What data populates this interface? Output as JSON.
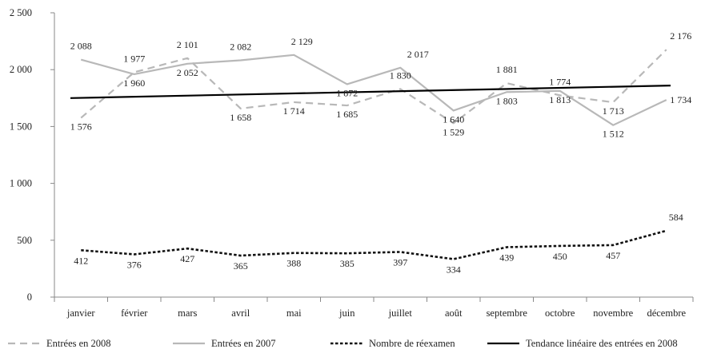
{
  "chart_data": {
    "type": "line",
    "title": "",
    "xlabel": "",
    "ylabel": "",
    "ylim": [
      0,
      2500
    ],
    "yticks": [
      0,
      500,
      1000,
      1500,
      2000,
      2500
    ],
    "ytick_labels": [
      "0",
      "500",
      "1 000",
      "1 500",
      "2 000",
      "2 500"
    ],
    "categories": [
      "janvier",
      "février",
      "mars",
      "avril",
      "mai",
      "juin",
      "juillet",
      "août",
      "septembre",
      "octobre",
      "novembre",
      "décembre"
    ],
    "grid": false,
    "legend_position": "bottom",
    "series": [
      {
        "name": "Entrées en 2008",
        "style": "dashed",
        "color": "#b8b8b8",
        "values": [
          1576,
          1977,
          2101,
          1658,
          1714,
          1685,
          1830,
          1529,
          1881,
          1774,
          1713,
          2176
        ],
        "labels": [
          "1 576",
          "1 977",
          "2 101",
          "1 658",
          "1 714",
          "1 685",
          "1 830",
          "1 529",
          "1 881",
          "1 774",
          "1 713",
          "2 176"
        ]
      },
      {
        "name": "Entrées en 2007",
        "style": "solid",
        "color": "#b8b8b8",
        "values": [
          2088,
          1960,
          2052,
          2082,
          2129,
          1872,
          2017,
          1640,
          1803,
          1813,
          1512,
          1734
        ],
        "labels": [
          "2 088",
          "1 960",
          "2 052",
          "2 082",
          "2 129",
          "1 872",
          "2 017",
          "1 640",
          "1 803",
          "1 813",
          "1 512",
          "1 734"
        ]
      },
      {
        "name": "Nombre de réexamen",
        "style": "dotted",
        "color": "#111111",
        "values": [
          412,
          376,
          427,
          365,
          388,
          385,
          397,
          334,
          439,
          450,
          457,
          584
        ],
        "labels": [
          "412",
          "376",
          "427",
          "365",
          "388",
          "385",
          "397",
          "334",
          "439",
          "450",
          "457",
          "584"
        ]
      },
      {
        "name": "Tendance linéaire des entrées en 2008",
        "style": "trend",
        "color": "#000000",
        "values": [
          1750,
          1760,
          1770,
          1780,
          1790,
          1800,
          1810,
          1820,
          1830,
          1840,
          1850,
          1860
        ],
        "labels": []
      }
    ]
  }
}
